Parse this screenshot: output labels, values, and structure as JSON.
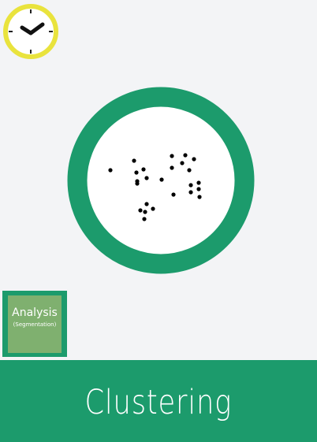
{
  "icons": {
    "clock": "clock-icon",
    "dish": "circle-with-scatter-points-icon"
  },
  "category": {
    "name": "Analysis",
    "subname": "(Segmentation)"
  },
  "title": "Clustering",
  "colors": {
    "background": "#f3f4f6",
    "primary_green": "#1c9b6c",
    "tag_light_green": "#7fb06f",
    "clock_ring": "#e9e33d",
    "dots": "#000000",
    "text": "#ffffff"
  }
}
